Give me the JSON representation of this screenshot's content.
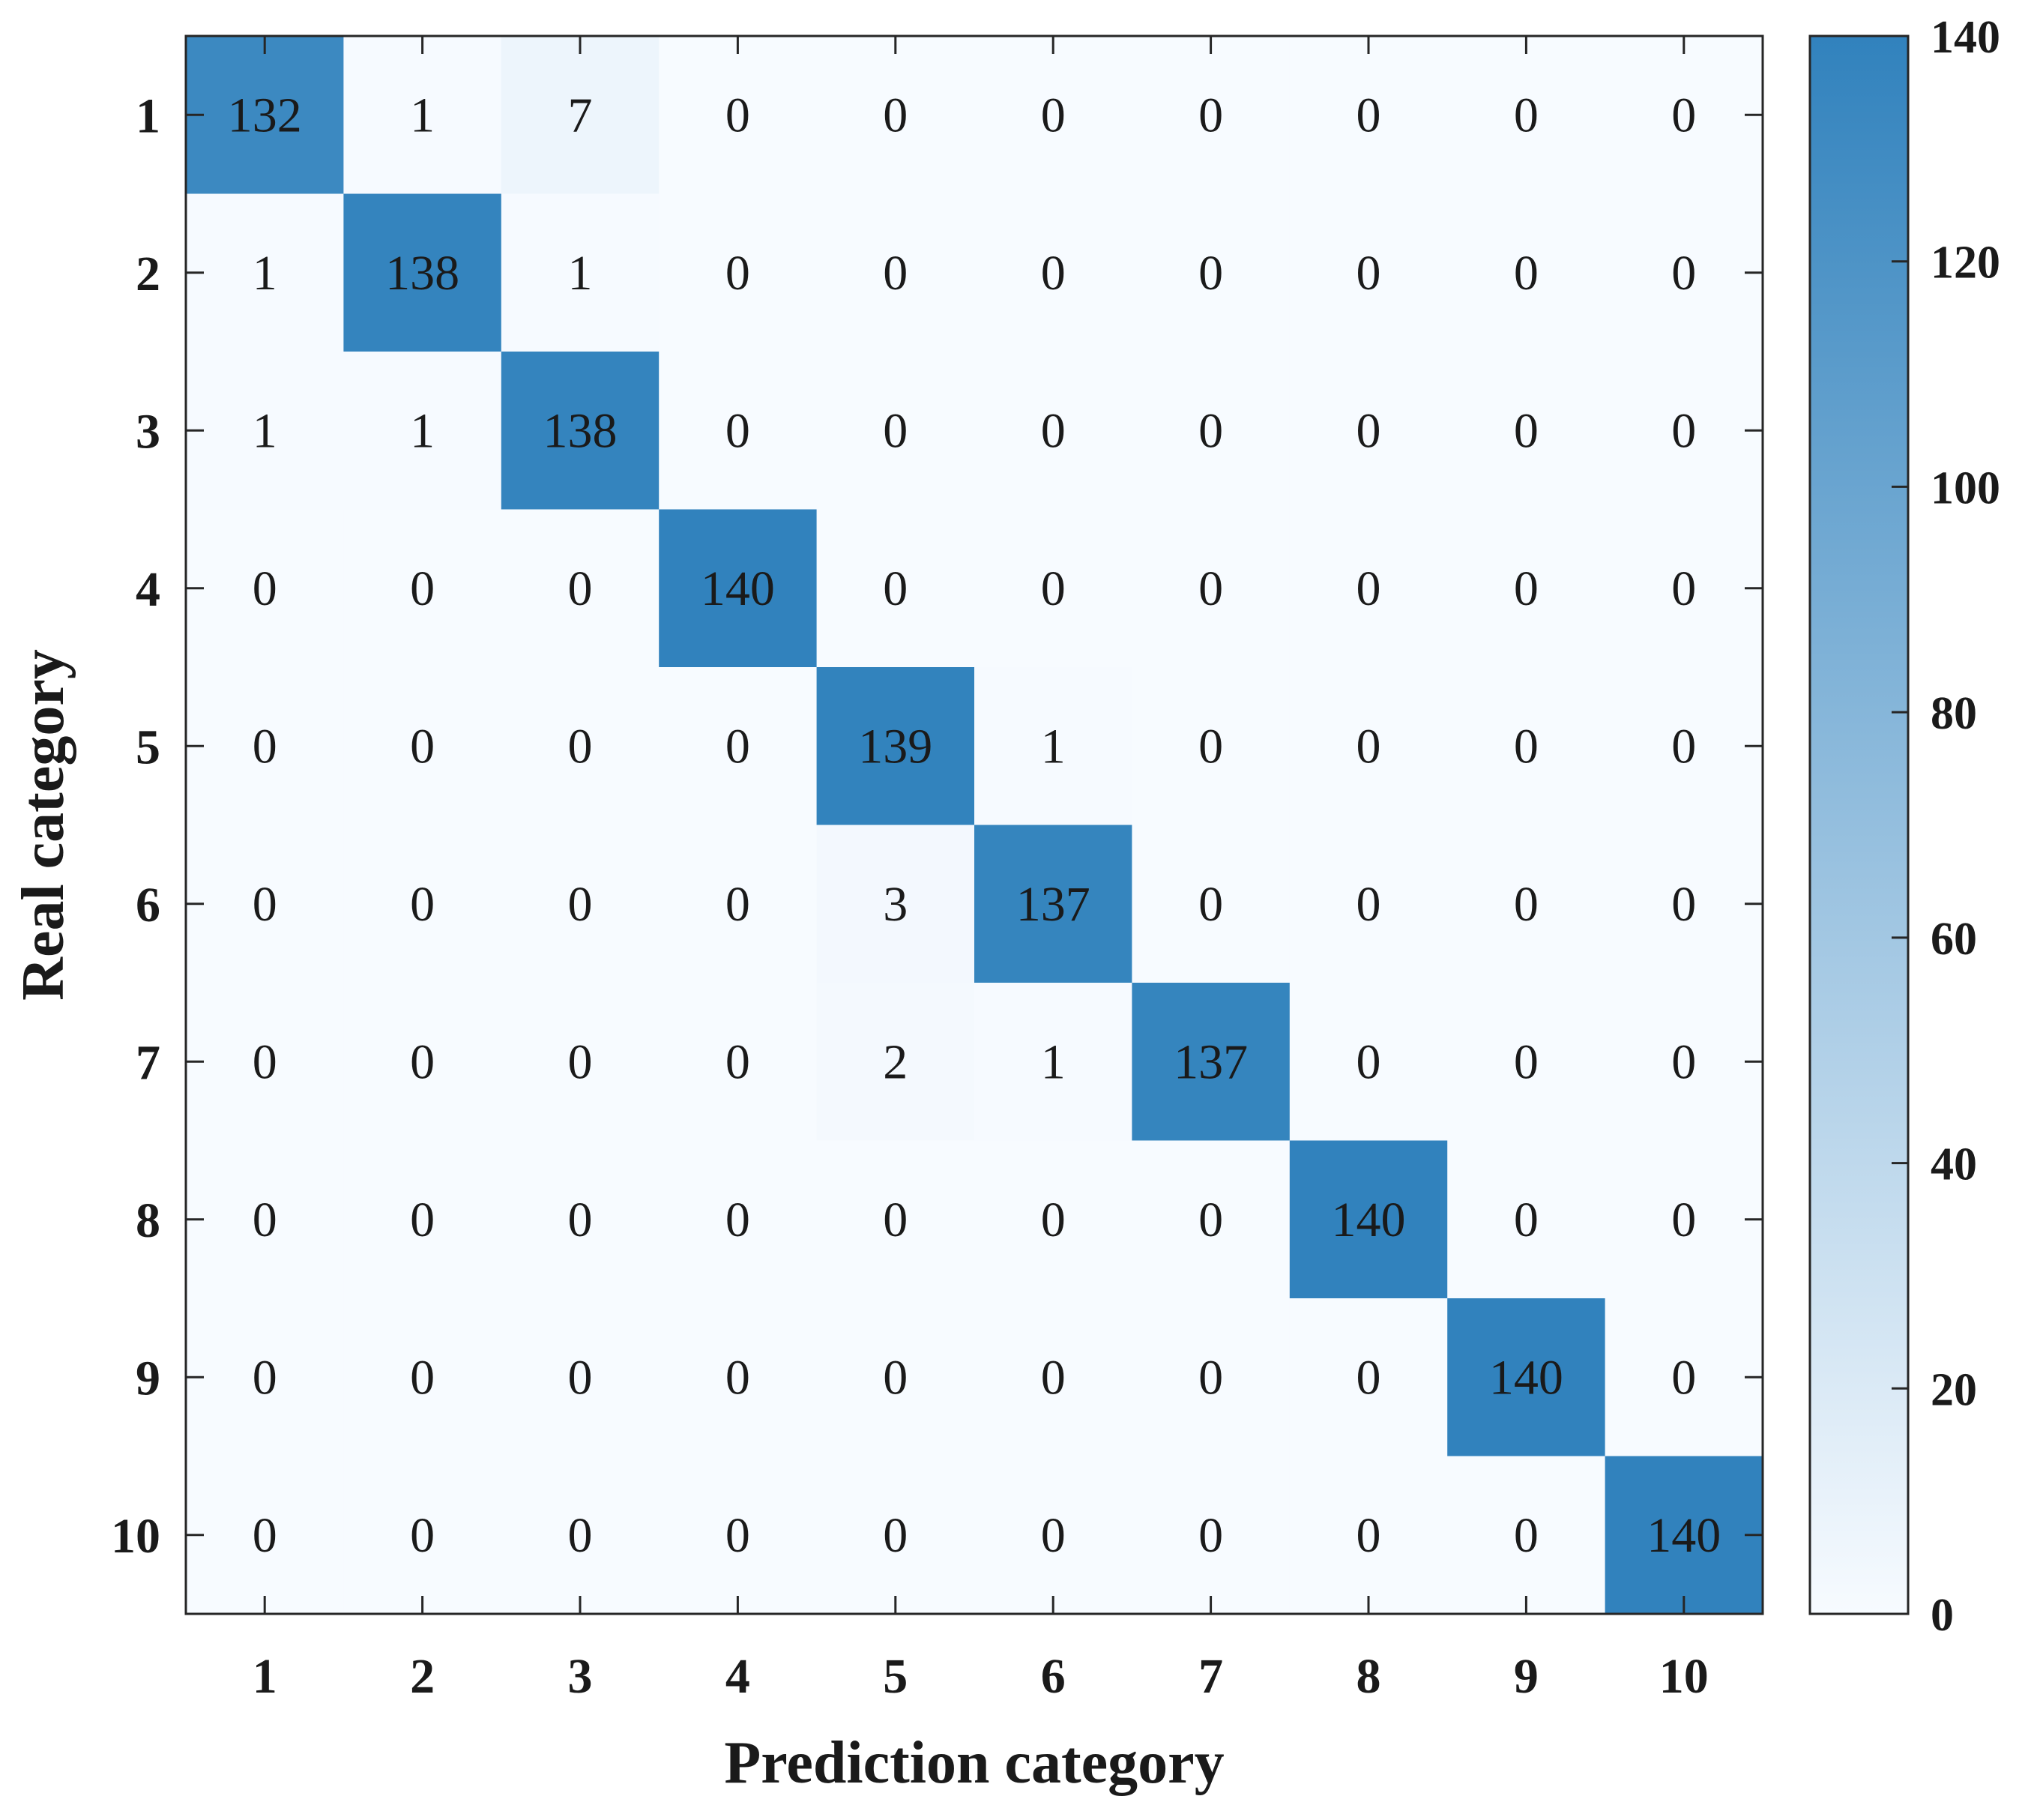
{
  "chart_data": {
    "type": "heatmap",
    "xlabel": "Prediction category",
    "ylabel": "Real category",
    "x_categories": [
      "1",
      "2",
      "3",
      "4",
      "5",
      "6",
      "7",
      "8",
      "9",
      "10"
    ],
    "y_categories": [
      "1",
      "2",
      "3",
      "4",
      "5",
      "6",
      "7",
      "8",
      "9",
      "10"
    ],
    "matrix": [
      [
        132,
        1,
        7,
        0,
        0,
        0,
        0,
        0,
        0,
        0
      ],
      [
        1,
        138,
        1,
        0,
        0,
        0,
        0,
        0,
        0,
        0
      ],
      [
        1,
        1,
        138,
        0,
        0,
        0,
        0,
        0,
        0,
        0
      ],
      [
        0,
        0,
        0,
        140,
        0,
        0,
        0,
        0,
        0,
        0
      ],
      [
        0,
        0,
        0,
        0,
        139,
        1,
        0,
        0,
        0,
        0
      ],
      [
        0,
        0,
        0,
        0,
        3,
        137,
        0,
        0,
        0,
        0
      ],
      [
        0,
        0,
        0,
        0,
        2,
        1,
        137,
        0,
        0,
        0
      ],
      [
        0,
        0,
        0,
        0,
        0,
        0,
        0,
        140,
        0,
        0
      ],
      [
        0,
        0,
        0,
        0,
        0,
        0,
        0,
        0,
        140,
        0
      ],
      [
        0,
        0,
        0,
        0,
        0,
        0,
        0,
        0,
        0,
        140
      ]
    ],
    "colorbar": {
      "min": 0,
      "max": 140,
      "ticks": [
        0,
        20,
        40,
        60,
        80,
        100,
        120,
        140
      ],
      "colors": {
        "low": "#f7fbff",
        "high": "#3182bd"
      }
    },
    "grid": false
  }
}
